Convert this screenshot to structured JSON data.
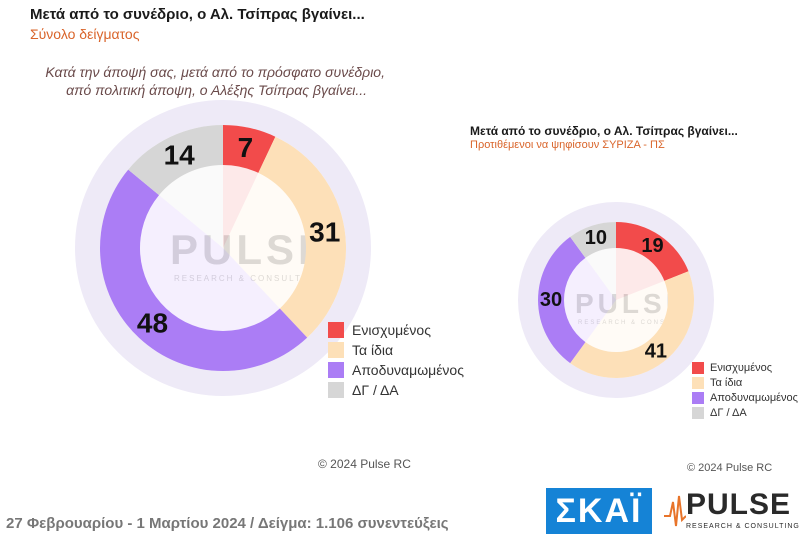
{
  "title": "Μετά από το συνέδριο, ο Αλ. Τσίπρας βγαίνει...",
  "subtitle": "Σύνολο δείγματος",
  "question": {
    "line1": "Κατά την άποψή σας, μετά από το πρόσφατο συνέδριο,",
    "line2": "από πολιτική άποψη, ο Αλέξης Τσίπρας βγαίνει..."
  },
  "watermark": {
    "name": "PULSE",
    "tag": "RESEARCH & CONSULTING"
  },
  "copyright": "© 2024 Pulse RC",
  "footer": "27 Φεβρουαρίου - 1 Μαρτίου 2024  /  Δείγμα:  1.106 συνεντεύξεις",
  "logos": {
    "skai": "ΣΚΑΪ",
    "pulse_name": "PULSE",
    "pulse_tag": "RESEARCH & CONSULTING"
  },
  "colors": {
    "Ενισχυμένος": "#f24b4b",
    "Τα ίδια": "#fde0b8",
    "Αποδυναμωμένος": "#ab7df5",
    "ΔΓ / ΔΑ": "#d6d6d6"
  },
  "chart_data": [
    {
      "type": "pie",
      "title": "Μετά από το συνέδριο, ο Αλ. Τσίπρας βγαίνει...",
      "subtitle": "Σύνολο δείγματος",
      "categories": [
        "Ενισχυμένος",
        "Τα ίδια",
        "Αποδυναμωμένος",
        "ΔΓ / ΔΑ"
      ],
      "values": [
        7,
        31,
        48,
        14
      ],
      "legend": "bottom-right"
    },
    {
      "type": "pie",
      "title": "Μετά από το συνέδριο, ο Αλ. Τσίπρας βγαίνει...",
      "subtitle": "Προτιθέμενοι να ψηφίσουν ΣΥΡΙΖΑ - ΠΣ",
      "categories": [
        "Ενισχυμένος",
        "Τα ίδια",
        "Αποδυναμωμένος",
        "ΔΓ / ΔΑ"
      ],
      "values": [
        19,
        41,
        30,
        10
      ],
      "legend": "bottom-right"
    }
  ]
}
